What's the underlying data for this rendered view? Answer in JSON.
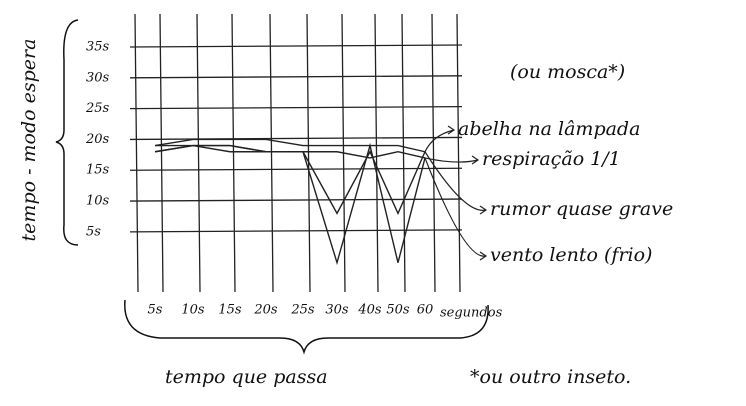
{
  "chart_data": {
    "type": "line",
    "ylabel": "tempo - modo espera",
    "xlabel": "tempo que passa",
    "x_unit": "segundos",
    "categories": [
      "5s",
      "10s",
      "15s",
      "20s",
      "25s",
      "30s",
      "40s",
      "50s",
      "60"
    ],
    "series": [
      {
        "name": "abelha na lâmpada",
        "color": "#222222",
        "values": [
          19,
          20,
          20,
          20,
          19,
          19,
          19,
          19,
          18
        ]
      },
      {
        "name": "respiração 1/1",
        "color": "#222222",
        "values": [
          18,
          19,
          19,
          18,
          18,
          18,
          17,
          18,
          17
        ]
      },
      {
        "name": "rumor quase grave",
        "color": "#222222",
        "values": [
          19,
          19,
          18,
          18,
          18,
          8,
          18,
          8,
          18
        ]
      },
      {
        "name": "vento lento (frio)",
        "color": "#222222",
        "values": [
          18,
          19,
          19,
          18,
          18,
          0,
          19,
          0,
          17
        ]
      }
    ],
    "ylim": [
      -2,
      38
    ],
    "yticks": [
      {
        "value": 5,
        "label": "5s"
      },
      {
        "value": 10,
        "label": "10s"
      },
      {
        "value": 15,
        "label": "15s"
      },
      {
        "value": 20,
        "label": "20s"
      },
      {
        "value": 25,
        "label": "25s"
      },
      {
        "value": 30,
        "label": "30s"
      },
      {
        "value": 35,
        "label": "35s"
      }
    ],
    "grid": true,
    "annotations": [
      "(ou mosca*)",
      "*ou outro inseto."
    ]
  }
}
